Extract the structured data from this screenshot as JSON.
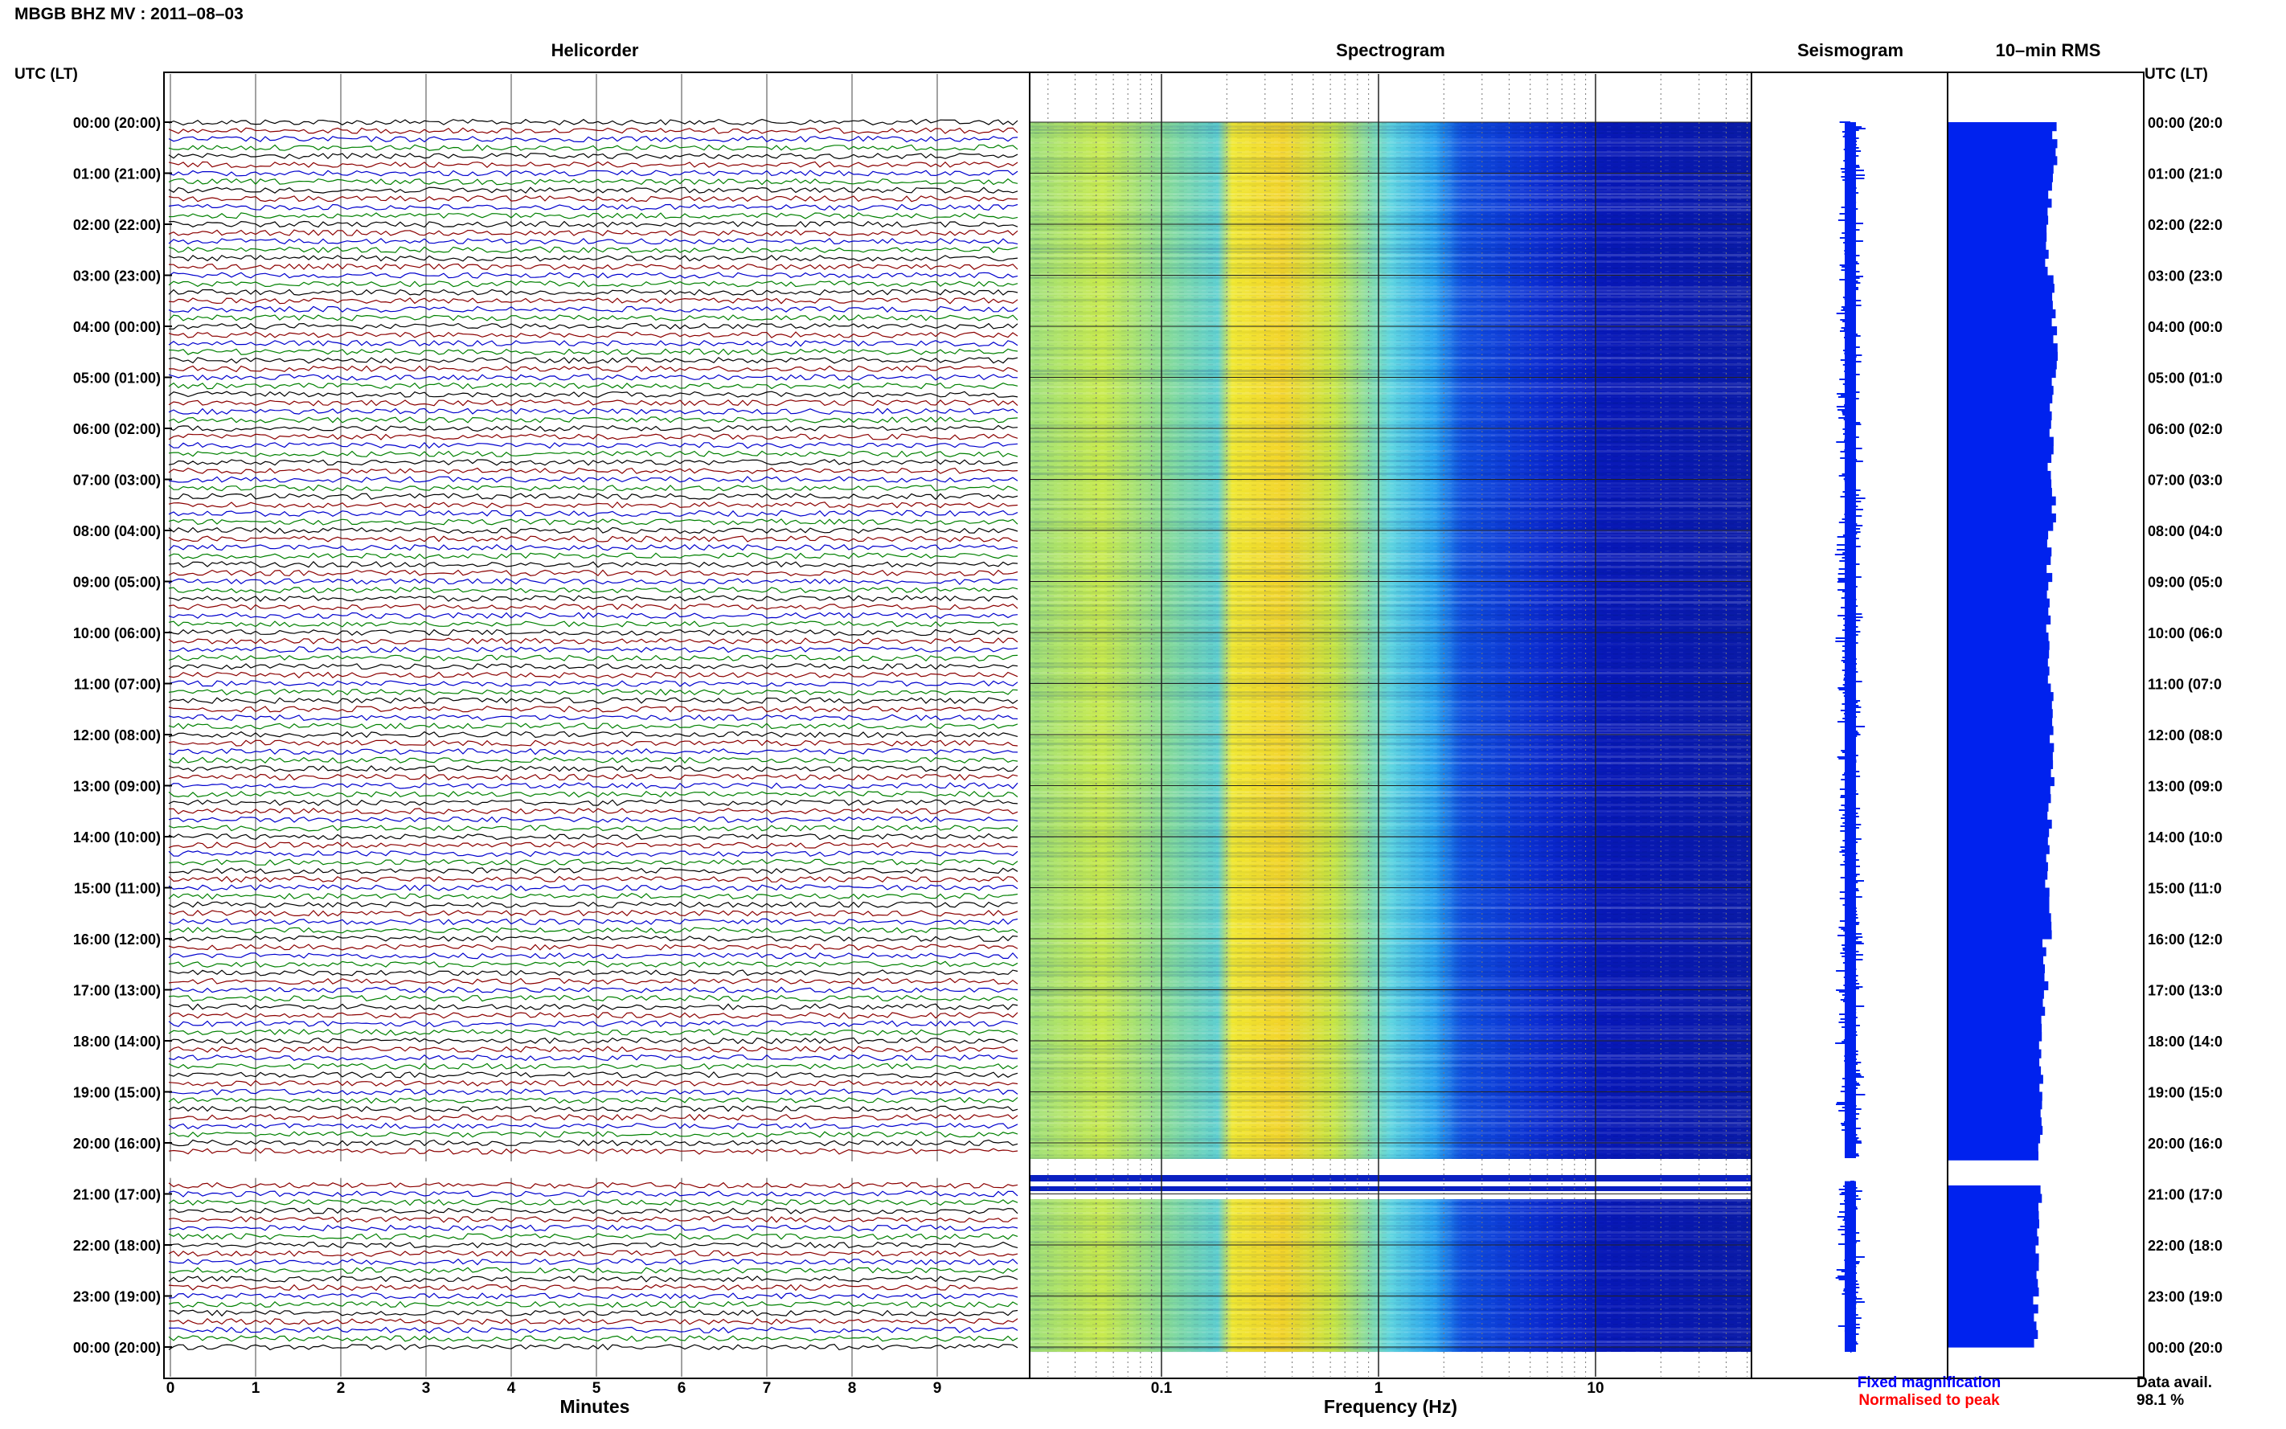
{
  "title": "MBGB BHZ MV : 2011–08–03",
  "left_axis_label": "UTC (LT)",
  "right_axis_label": "UTC (LT)",
  "panels": {
    "helicorder": "Helicorder",
    "spectrogram": "Spectrogram",
    "seismogram": "Seismogram",
    "rms": "10–min RMS"
  },
  "hour_labels": [
    "00:00 (20:00)",
    "01:00 (21:00)",
    "02:00 (22:00)",
    "03:00 (23:00)",
    "04:00 (00:00)",
    "05:00 (01:00)",
    "06:00 (02:00)",
    "07:00 (03:00)",
    "08:00 (04:00)",
    "09:00 (05:00)",
    "10:00 (06:00)",
    "11:00 (07:00)",
    "12:00 (08:00)",
    "13:00 (09:00)",
    "14:00 (10:00)",
    "15:00 (11:00)",
    "16:00 (12:00)",
    "17:00 (13:00)",
    "18:00 (14:00)",
    "19:00 (15:00)",
    "20:00 (16:00)",
    "21:00 (17:00)",
    "22:00 (18:00)",
    "23:00 (19:00)",
    "00:00 (20:00)"
  ],
  "right_hour_labels": [
    "00:00 (20:0",
    "01:00 (21:0",
    "02:00 (22:0",
    "03:00 (23:0",
    "04:00 (00:0",
    "05:00 (01:0",
    "06:00 (02:0",
    "07:00 (03:0",
    "08:00 (04:0",
    "09:00 (05:0",
    "10:00 (06:0",
    "11:00 (07:0",
    "12:00 (08:0",
    "13:00 (09:0",
    "14:00 (10:0",
    "15:00 (11:0",
    "16:00 (12:0",
    "17:00 (13:0",
    "18:00 (14:0",
    "19:00 (15:0",
    "20:00 (16:0",
    "21:00 (17:0",
    "22:00 (18:0",
    "23:00 (19:0",
    "00:00 (20:0"
  ],
  "minutes_ticks": [
    "0",
    "1",
    "2",
    "3",
    "4",
    "5",
    "6",
    "7",
    "8",
    "9"
  ],
  "minutes_label": "Minutes",
  "freq_ticks": [
    "0.1",
    "1",
    "10"
  ],
  "freq_label": "Frequency (Hz)",
  "legend": {
    "fixed": "Fixed magnification",
    "normalised": "Normalised to peak",
    "fixed_color": "#0000ff",
    "normalised_color": "#ff0000"
  },
  "data_avail_label": "Data avail.",
  "data_avail_value": "98.1 %",
  "trace_colors": [
    "#000000",
    "#8b0000",
    "#0000cd",
    "#008000"
  ],
  "chart_data": {
    "type": "heatmap",
    "gap_hours": [
      20.3,
      20.75
    ],
    "rms_values": [
      0.85,
      0.82,
      0.8,
      0.84,
      0.86,
      0.83,
      0.82,
      0.85,
      0.81,
      0.8,
      0.82,
      0.84,
      0.83,
      0.81,
      0.8,
      0.82,
      0.78,
      0.77,
      0.75,
      0.76,
      0.74,
      0.73,
      0.72,
      0.7
    ],
    "spectrogram_freq_range_hz": [
      0.02,
      50
    ],
    "freq_scale": "log"
  }
}
